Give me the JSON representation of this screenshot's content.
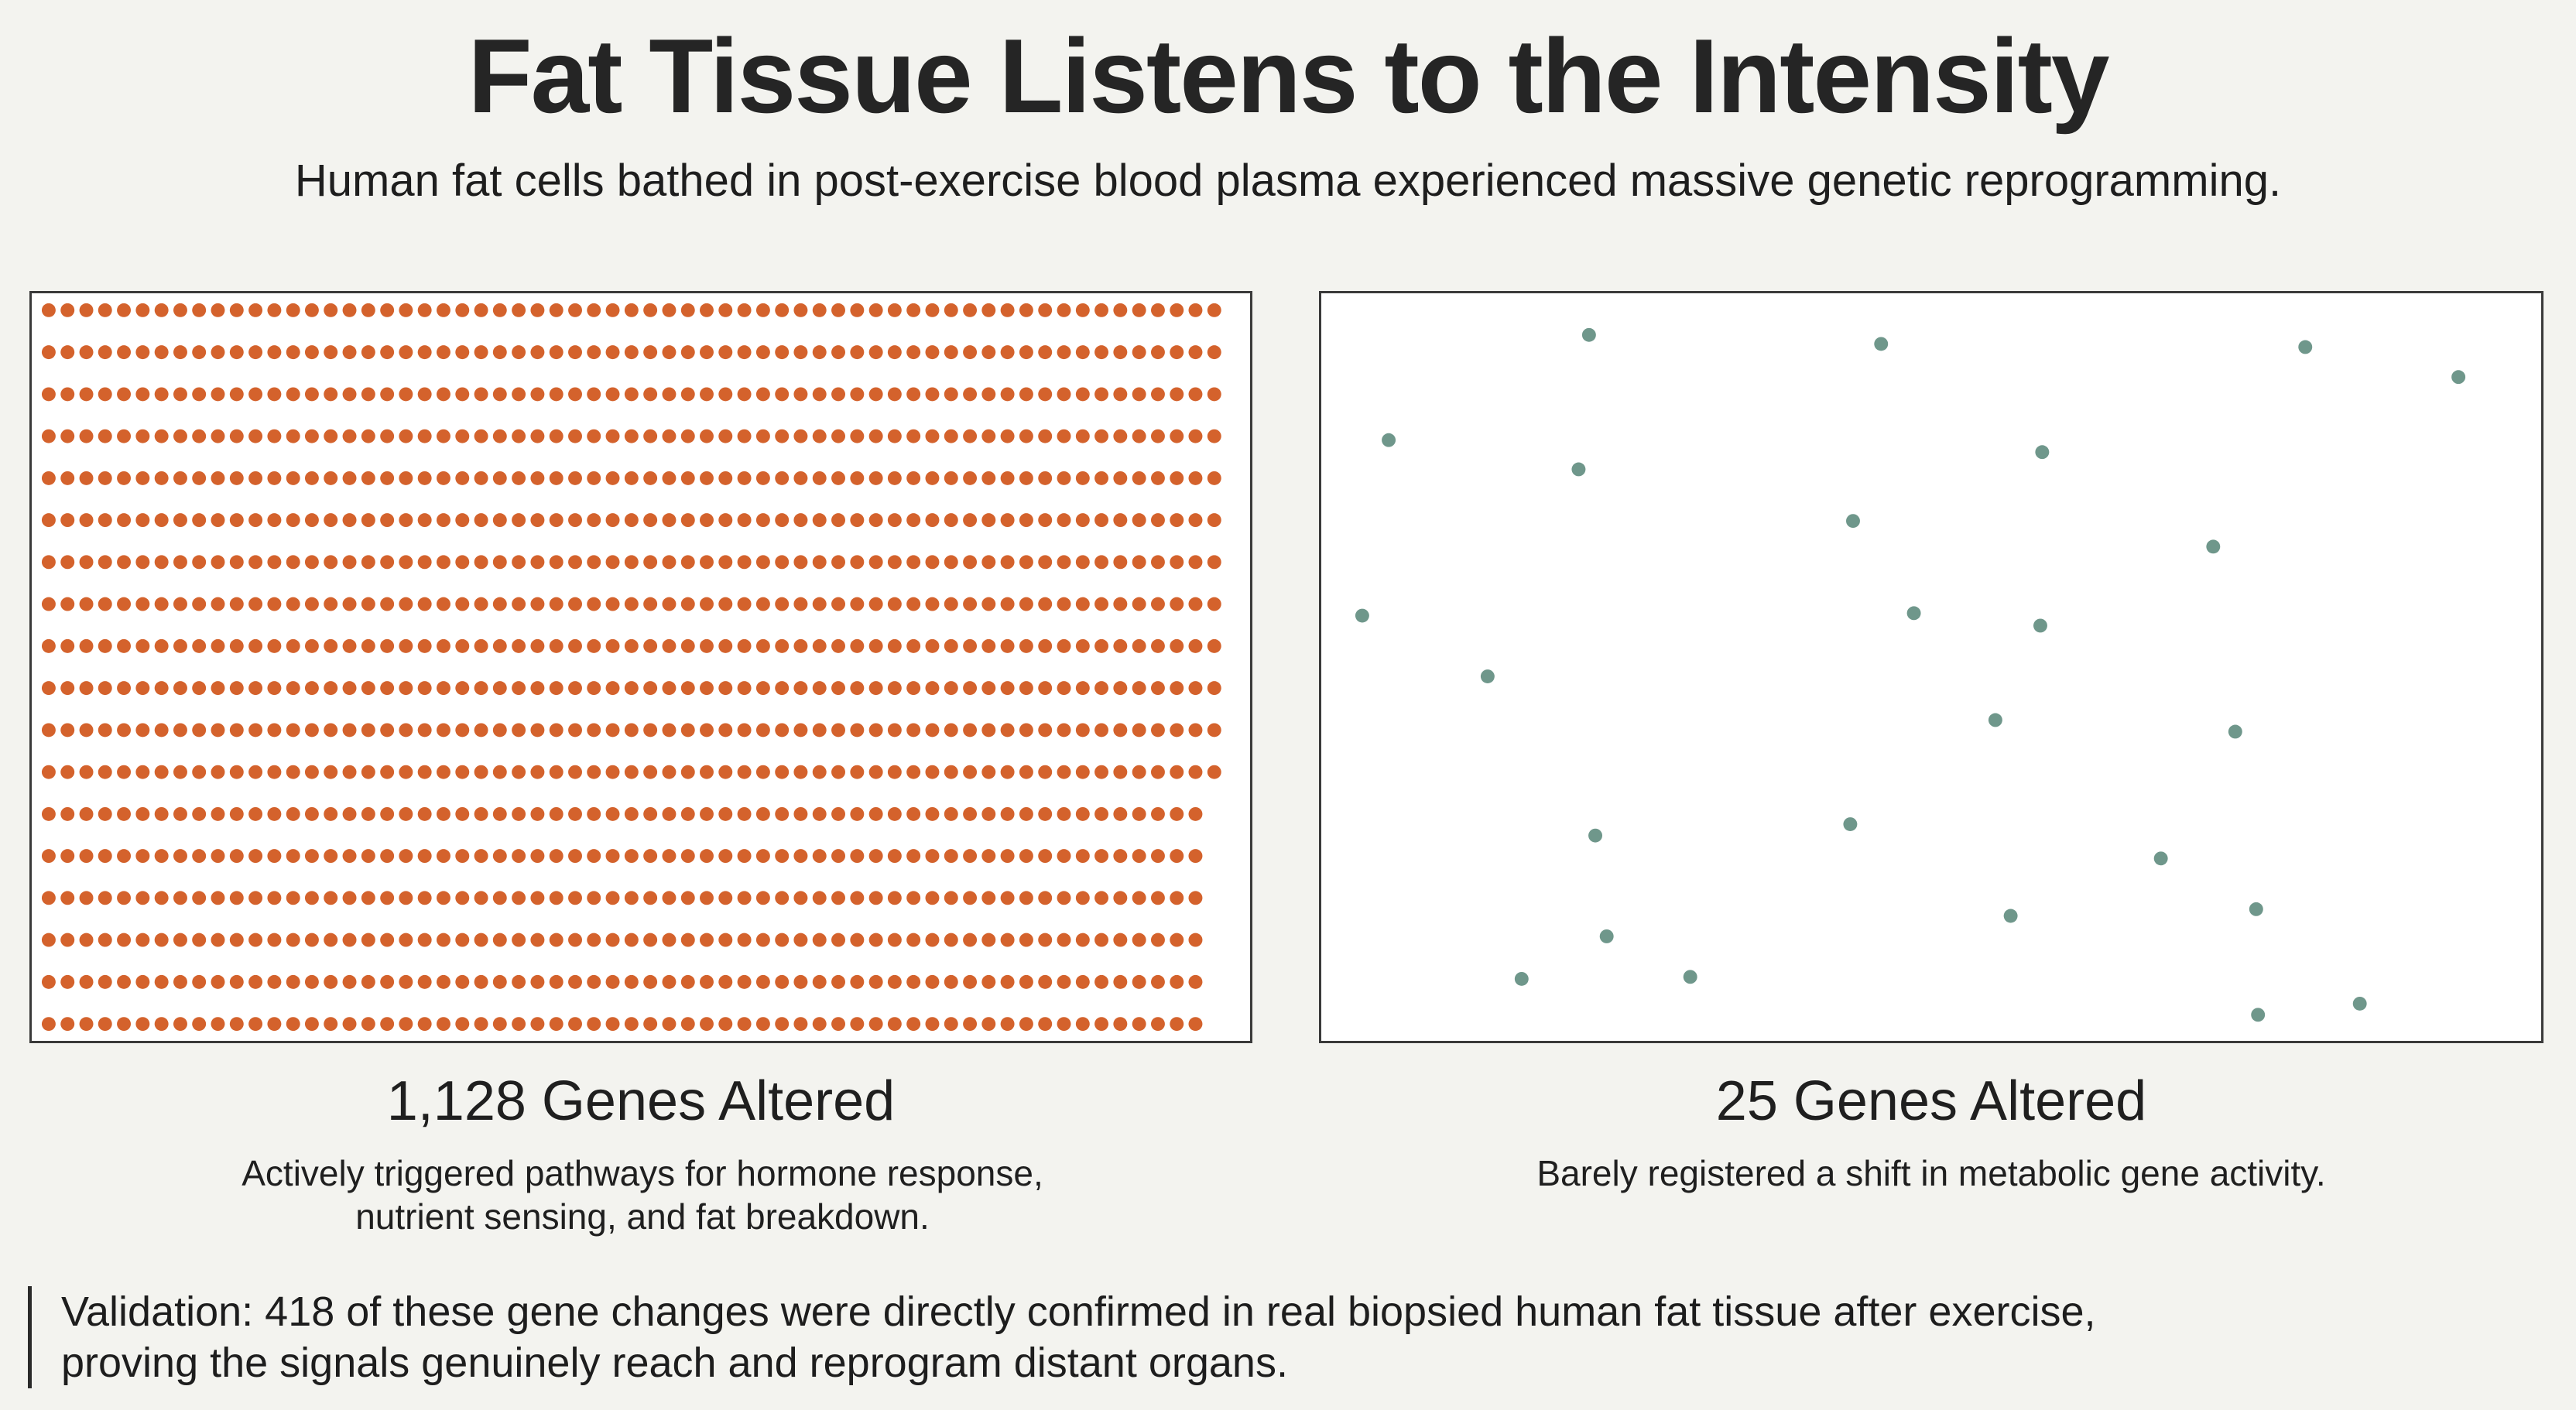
{
  "title": "Fat Tissue Listens to the Intensity",
  "subtitle": "Human fat cells bathed in post-exercise blood plasma experienced massive genetic reprogramming.",
  "colors": {
    "high_intensity_dot": "#d4622c",
    "low_intensity_dot": "#6f978b",
    "background": "#f3f3ef"
  },
  "chart_data": [
    {
      "type": "scatter",
      "label": "1,128 Genes Altered",
      "value": 1128,
      "description": [
        "Actively triggered pathways for hormone response,",
        "nutrient sensing, and fat breakdown."
      ]
    },
    {
      "type": "scatter",
      "label": "25 Genes Altered",
      "value": 25,
      "description": [
        "Barely registered a shift in metabolic gene activity."
      ]
    }
  ],
  "validation": {
    "line1": "Validation: 418 of these gene changes were directly confirmed in real biopsied human fat tissue after exercise,",
    "line2": "proving the signals genuinely reach and reprogram distant organs."
  }
}
